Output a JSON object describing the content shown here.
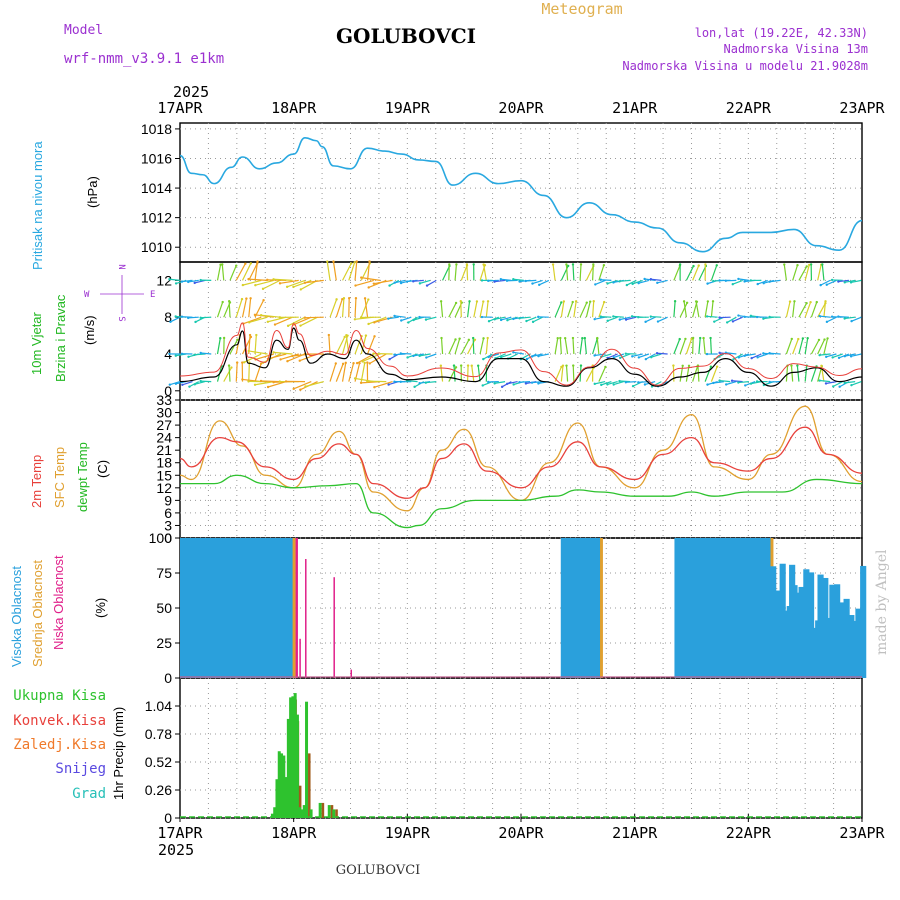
{
  "header": {
    "model_label": "Model",
    "model_name": "wrf-nmm_v3.9.1 e1km",
    "location": "GOLUBOVCI",
    "meteogram": "Meteogram",
    "lonlat": "lon,lat (19.22E, 42.33N)",
    "elevation": "Nadmorska Visina 13m",
    "model_elevation": "Nadmorska Visina u modelu 21.9028m",
    "footer_location": "GOLUBOVCI",
    "credit": "made by Angel"
  },
  "colors": {
    "pressure": "#29a8e0",
    "temp2m": "#e8413c",
    "sfc_temp": "#e0a83a",
    "dewpoint": "#2ec22e",
    "high_cloud": "#2aa0dc",
    "mid_cloud": "#e0a030",
    "low_cloud": "#e0208a",
    "wind_label": "#22b822",
    "purple": "#9b30d0"
  },
  "time_axis": {
    "year": "2025",
    "days": [
      "17APR",
      "18APR",
      "19APR",
      "20APR",
      "21APR",
      "22APR",
      "23APR"
    ]
  },
  "panels": {
    "pressure": {
      "ylabel": "Pritisak na nivou mora",
      "unit": "(hPa)",
      "ticks": [
        "1018",
        "1016",
        "1014",
        "1012",
        "1010"
      ]
    },
    "wind": {
      "ylabel1": "10m Vjetar",
      "ylabel2": "Brzina i Pravac",
      "unit": "(m/s)",
      "ticks": [
        "12",
        "8",
        "4",
        "0"
      ],
      "compass": {
        "n": "N",
        "s": "S",
        "w": "W",
        "e": "E"
      }
    },
    "temp": {
      "label_2m": "2m Temp",
      "label_sfc": "SFC Temp",
      "label_dew": "dewpt Temp",
      "unit": "(C)",
      "ticks": [
        "33",
        "30",
        "27",
        "24",
        "21",
        "18",
        "15",
        "12",
        "9",
        "6",
        "3",
        "0"
      ]
    },
    "cloud": {
      "label_high": "Visoka Oblacnost",
      "label_mid": "Srednja Oblacnost",
      "label_low": "Niska Oblacnost",
      "unit": "(%)",
      "ticks": [
        "100",
        "75",
        "50",
        "25",
        "0"
      ]
    },
    "precip": {
      "unit": "1hr Precip (mm)",
      "ticks": [
        "1.04",
        "0.78",
        "0.52",
        "0.26",
        "0"
      ],
      "legend": [
        {
          "label": "Ukupna Kisa",
          "color": "#2ec22e"
        },
        {
          "label": "Konvek.Kisa",
          "color": "#e8413c"
        },
        {
          "label": "Zaledj.Kisa",
          "color": "#f07a2a"
        },
        {
          "label": "Snijeg",
          "color": "#5a4ae0"
        },
        {
          "label": "Grad",
          "color": "#27c0b8"
        }
      ]
    }
  },
  "chart_data": [
    {
      "type": "line",
      "name": "pressure",
      "x_days": [
        0.0,
        0.1,
        0.2,
        0.3,
        0.45,
        0.55,
        0.7,
        0.85,
        1.0,
        1.1,
        1.2,
        1.25,
        1.35,
        1.5,
        1.65,
        1.8,
        1.95,
        2.1,
        2.25,
        2.4,
        2.6,
        2.8,
        3.0,
        3.2,
        3.4,
        3.6,
        3.8,
        4.0,
        4.2,
        4.4,
        4.6,
        4.8,
        4.95,
        5.2,
        5.4,
        5.6,
        5.8,
        6.0
      ],
      "values": [
        1016.2,
        1015.0,
        1014.9,
        1014.3,
        1015.4,
        1016.1,
        1015.3,
        1015.7,
        1016.3,
        1017.4,
        1017.2,
        1016.8,
        1015.5,
        1015.3,
        1016.7,
        1016.5,
        1016.3,
        1015.9,
        1015.8,
        1014.2,
        1015.0,
        1014.3,
        1014.5,
        1013.5,
        1012.0,
        1013.0,
        1012.2,
        1011.7,
        1011.3,
        1010.3,
        1009.7,
        1010.6,
        1011.0,
        1011.0,
        1011.2,
        1010.1,
        1009.8,
        1011.8
      ],
      "ylim": [
        1009,
        1018.4
      ]
    },
    {
      "type": "line",
      "name": "wind speed",
      "x_days": [
        0.0,
        0.3,
        0.5,
        0.55,
        0.6,
        0.75,
        0.85,
        0.95,
        1.0,
        1.05,
        1.15,
        1.3,
        1.45,
        1.55,
        1.65,
        1.85,
        2.0,
        2.3,
        2.6,
        2.8,
        3.0,
        3.2,
        3.4,
        3.6,
        3.8,
        4.0,
        4.2,
        4.4,
        4.6,
        4.8,
        5.0,
        5.2,
        5.4,
        5.6,
        5.8,
        6.0
      ],
      "values": [
        1.0,
        1.5,
        5.0,
        6.5,
        3.0,
        2.5,
        5.5,
        4.5,
        6.8,
        5.5,
        3.0,
        4.0,
        3.5,
        5.5,
        4.0,
        1.8,
        1.2,
        1.5,
        1.0,
        3.5,
        3.5,
        1.0,
        0.5,
        2.5,
        3.5,
        1.8,
        0.5,
        1.5,
        2.0,
        3.5,
        2.0,
        0.5,
        2.0,
        2.5,
        1.0,
        1.5
      ],
      "ylim": [
        -1,
        14
      ]
    },
    {
      "type": "line",
      "series": [
        {
          "name": "2m Temp",
          "x_days": [
            0.0,
            0.1,
            0.35,
            0.5,
            0.75,
            1.0,
            1.2,
            1.4,
            1.55,
            1.7,
            2.0,
            2.15,
            2.3,
            2.5,
            2.7,
            3.0,
            3.25,
            3.5,
            3.7,
            4.0,
            4.25,
            4.5,
            4.7,
            5.0,
            5.2,
            5.5,
            5.7,
            6.0
          ],
          "values": [
            19,
            17,
            24,
            23,
            17,
            14,
            19,
            22.5,
            20,
            13,
            9.5,
            12,
            19,
            22.5,
            16,
            12,
            17,
            23,
            17,
            14,
            20,
            24,
            18,
            16,
            19,
            26.5,
            20,
            15.5
          ]
        },
        {
          "name": "SFC Temp",
          "x_days": [
            0.0,
            0.1,
            0.35,
            0.55,
            0.75,
            1.0,
            1.2,
            1.4,
            1.55,
            1.7,
            2.0,
            2.15,
            2.3,
            2.5,
            2.7,
            3.0,
            3.25,
            3.5,
            3.7,
            4.0,
            4.25,
            4.5,
            4.7,
            5.0,
            5.2,
            5.5,
            5.7,
            6.0
          ],
          "values": [
            15,
            14,
            28,
            22,
            15,
            12,
            20,
            25.5,
            20,
            11,
            6.5,
            12,
            21,
            26,
            17,
            9,
            18,
            27.5,
            17,
            12,
            21,
            29.5,
            17,
            14,
            20,
            31.5,
            20,
            13.5
          ]
        },
        {
          "name": "dewpt Temp",
          "x_days": [
            0.0,
            0.3,
            0.5,
            0.75,
            1.0,
            1.3,
            1.55,
            1.7,
            2.0,
            2.1,
            2.3,
            2.6,
            3.0,
            3.3,
            3.5,
            3.7,
            4.0,
            4.3,
            4.5,
            4.7,
            5.0,
            5.3,
            5.6,
            6.0
          ],
          "values": [
            13,
            13,
            15,
            13,
            12,
            12.5,
            13,
            6,
            2.5,
            3,
            7,
            9,
            9,
            10,
            11.5,
            11,
            10,
            10,
            11,
            10,
            11,
            11,
            14,
            13
          ]
        }
      ],
      "ylim": [
        0,
        33
      ]
    },
    {
      "type": "bar",
      "name": "cloud cover",
      "series_names": [
        "Visoka Oblacnost",
        "Srednja Oblacnost",
        "Niska Oblacnost"
      ],
      "blocks": [
        {
          "from_day": 0.0,
          "to_day": 0.75,
          "high": 100,
          "mid": 100,
          "low": 100
        },
        {
          "from_day": 0.75,
          "to_day": 0.95,
          "high": 100,
          "mid": 100,
          "low": 100
        },
        {
          "from_day": 3.35,
          "to_day": 3.65,
          "high": 100,
          "mid": 100,
          "low": 0
        },
        {
          "from_day": 4.35,
          "to_day": 5.15,
          "high": 100,
          "mid": 100,
          "low": 0
        },
        {
          "from_day": 5.15,
          "to_day": 6.0,
          "high": 70,
          "mid": 0,
          "low": 0
        }
      ],
      "spikes_low": [
        {
          "day": 1.1,
          "value": 85
        },
        {
          "day": 1.35,
          "value": 72
        },
        {
          "day": 1.05,
          "value": 28
        },
        {
          "day": 1.5,
          "value": 6
        }
      ],
      "ylim": [
        0,
        100
      ]
    },
    {
      "type": "bar",
      "name": "1hr precip",
      "bars": [
        {
          "day": 0.8,
          "total": 0.04,
          "conv": 0.0
        },
        {
          "day": 0.82,
          "total": 0.1,
          "conv": 0.0
        },
        {
          "day": 0.84,
          "total": 0.36,
          "conv": 0.0
        },
        {
          "day": 0.86,
          "total": 0.62,
          "conv": 0.0
        },
        {
          "day": 0.88,
          "total": 0.6,
          "conv": 0.0
        },
        {
          "day": 0.9,
          "total": 0.58,
          "conv": 0.12
        },
        {
          "day": 0.92,
          "total": 0.38,
          "conv": 0.0
        },
        {
          "day": 0.94,
          "total": 0.92,
          "conv": 0.0
        },
        {
          "day": 0.96,
          "total": 1.12,
          "conv": 0.25
        },
        {
          "day": 0.98,
          "total": 1.13,
          "conv": 1.1
        },
        {
          "day": 1.0,
          "total": 1.16,
          "conv": 0.9
        },
        {
          "day": 1.02,
          "total": 0.96,
          "conv": 0.3
        },
        {
          "day": 1.04,
          "total": 0.1,
          "conv": 0.0
        },
        {
          "day": 1.06,
          "total": 0.08,
          "conv": 0.0
        },
        {
          "day": 1.08,
          "total": 0.12,
          "conv": 0.0
        },
        {
          "day": 1.1,
          "total": 1.08,
          "conv": 0.6
        },
        {
          "day": 1.14,
          "total": 0.08,
          "conv": 0.0
        },
        {
          "day": 1.22,
          "total": 0.14,
          "conv": 0.14
        },
        {
          "day": 1.3,
          "total": 0.12,
          "conv": 0.12
        },
        {
          "day": 1.34,
          "total": 0.08,
          "conv": 0.08
        }
      ],
      "ylim": [
        0,
        1.3
      ]
    }
  ]
}
